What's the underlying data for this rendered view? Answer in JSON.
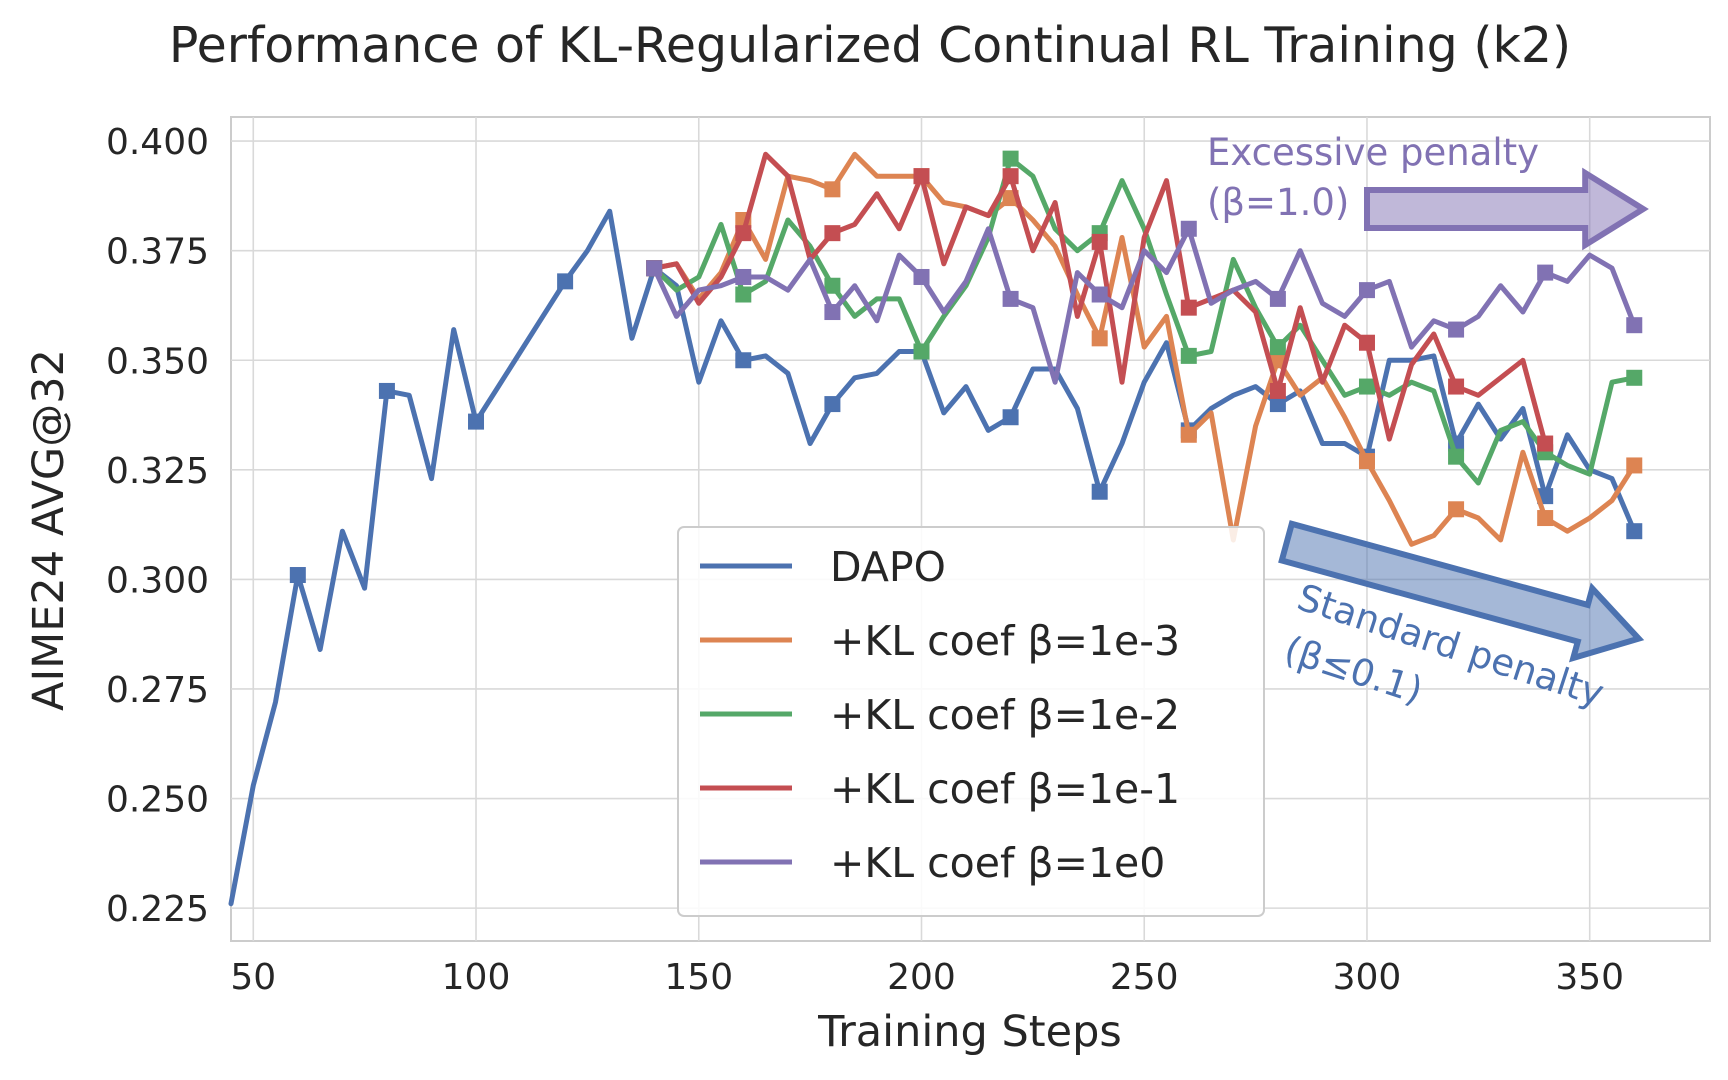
{
  "chart_data": {
    "type": "line",
    "title": "Performance of KL-Regularized Continual RL Training (k2)",
    "xlabel": "Training Steps",
    "ylabel": "AIME24 AVG@32",
    "xlim": [
      45,
      377
    ],
    "ylim": [
      0.2175,
      0.4055
    ],
    "xticks": [
      50,
      100,
      150,
      200,
      250,
      300,
      350
    ],
    "yticks": [
      0.225,
      0.25,
      0.275,
      0.3,
      0.325,
      0.35,
      0.375,
      0.4
    ],
    "grid": true,
    "legend_position": "lower-center",
    "series": [
      {
        "name": "DAPO",
        "color": "#4c72b0",
        "x": [
          45,
          50,
          55,
          60,
          65,
          70,
          75,
          80,
          85,
          90,
          95,
          100,
          105,
          110,
          115,
          120,
          125,
          130,
          135,
          140,
          145,
          150,
          155,
          160,
          165,
          170,
          175,
          180,
          185,
          190,
          195,
          200,
          205,
          210,
          215,
          220,
          225,
          230,
          235,
          240,
          245,
          250,
          255,
          260,
          265,
          270,
          275,
          280,
          285,
          290,
          295,
          300,
          305,
          310,
          315,
          320,
          325,
          330,
          335,
          340,
          345,
          350,
          355,
          360
        ],
        "y": [
          0.226,
          0.253,
          0.272,
          0.301,
          0.284,
          0.311,
          0.298,
          0.343,
          0.342,
          0.323,
          0.357,
          0.336,
          0.344,
          0.352,
          0.36,
          0.368,
          0.375,
          0.384,
          0.355,
          0.371,
          0.367,
          0.345,
          0.359,
          0.35,
          0.351,
          0.347,
          0.331,
          0.34,
          0.346,
          0.347,
          0.352,
          0.352,
          0.338,
          0.344,
          0.334,
          0.337,
          0.348,
          0.348,
          0.339,
          0.32,
          0.331,
          0.345,
          0.354,
          0.334,
          0.339,
          0.342,
          0.344,
          0.34,
          0.343,
          0.331,
          0.331,
          0.328,
          0.35,
          0.35,
          0.351,
          0.331,
          0.34,
          0.332,
          0.339,
          0.319,
          0.333,
          0.325,
          0.323,
          0.311
        ],
        "marker_x": [
          60,
          80,
          100,
          120,
          140,
          160,
          180,
          200,
          220,
          240,
          260,
          280,
          300,
          320,
          340,
          360
        ]
      },
      {
        "name": "+KL coef β=1e-3",
        "color": "#dd8452",
        "x": [
          140,
          145,
          150,
          155,
          160,
          165,
          170,
          175,
          180,
          185,
          190,
          195,
          200,
          205,
          210,
          215,
          220,
          225,
          230,
          235,
          240,
          245,
          250,
          255,
          260,
          265,
          270,
          275,
          280,
          285,
          290,
          295,
          300,
          305,
          310,
          315,
          320,
          325,
          330,
          335,
          340,
          345,
          350,
          355,
          360
        ],
        "y": [
          0.371,
          0.372,
          0.364,
          0.37,
          0.382,
          0.373,
          0.392,
          0.391,
          0.389,
          0.397,
          0.392,
          0.392,
          0.392,
          0.386,
          0.385,
          0.383,
          0.387,
          0.382,
          0.376,
          0.365,
          0.355,
          0.378,
          0.353,
          0.36,
          0.333,
          0.338,
          0.309,
          0.335,
          0.35,
          0.342,
          0.346,
          0.337,
          0.327,
          0.318,
          0.308,
          0.31,
          0.316,
          0.314,
          0.309,
          0.329,
          0.314,
          0.311,
          0.314,
          0.318,
          0.326
        ],
        "marker_x": [
          140,
          160,
          180,
          200,
          220,
          240,
          260,
          280,
          300,
          320,
          340,
          360
        ]
      },
      {
        "name": "+KL coef β=1e-2",
        "color": "#55a868",
        "x": [
          140,
          145,
          150,
          155,
          160,
          165,
          170,
          175,
          180,
          185,
          190,
          195,
          200,
          205,
          210,
          215,
          220,
          225,
          230,
          235,
          240,
          245,
          250,
          255,
          260,
          265,
          270,
          275,
          280,
          285,
          290,
          295,
          300,
          305,
          310,
          315,
          320,
          325,
          330,
          335,
          340,
          345,
          350,
          355,
          360
        ],
        "y": [
          0.371,
          0.366,
          0.369,
          0.381,
          0.365,
          0.368,
          0.382,
          0.376,
          0.367,
          0.36,
          0.364,
          0.364,
          0.352,
          0.36,
          0.367,
          0.378,
          0.396,
          0.392,
          0.38,
          0.375,
          0.379,
          0.391,
          0.38,
          0.365,
          0.351,
          0.352,
          0.373,
          0.362,
          0.353,
          0.358,
          0.35,
          0.342,
          0.344,
          0.342,
          0.345,
          0.343,
          0.328,
          0.322,
          0.334,
          0.336,
          0.329,
          0.326,
          0.324,
          0.345,
          0.346
        ],
        "marker_x": [
          140,
          160,
          180,
          200,
          220,
          240,
          260,
          280,
          300,
          320,
          340,
          360
        ]
      },
      {
        "name": "+KL coef β=1e-1",
        "color": "#c44e52",
        "x": [
          140,
          145,
          150,
          155,
          160,
          165,
          170,
          175,
          180,
          185,
          190,
          195,
          200,
          205,
          210,
          215,
          220,
          225,
          230,
          235,
          240,
          245,
          250,
          255,
          260,
          265,
          270,
          275,
          280,
          285,
          290,
          295,
          300,
          305,
          310,
          315,
          320,
          325,
          330,
          335,
          340
        ],
        "y": [
          0.371,
          0.372,
          0.363,
          0.369,
          0.379,
          0.397,
          0.392,
          0.373,
          0.379,
          0.381,
          0.388,
          0.38,
          0.392,
          0.372,
          0.385,
          0.383,
          0.392,
          0.375,
          0.386,
          0.36,
          0.377,
          0.345,
          0.378,
          0.391,
          0.362,
          0.364,
          0.366,
          0.361,
          0.343,
          0.362,
          0.345,
          0.358,
          0.354,
          0.332,
          0.349,
          0.356,
          0.344,
          0.342,
          0.346,
          0.35,
          0.331
        ],
        "marker_x": [
          140,
          160,
          180,
          200,
          220,
          240,
          260,
          280,
          300,
          320,
          340
        ]
      },
      {
        "name": "+KL coef β=1e0",
        "color": "#8172b3",
        "x": [
          140,
          145,
          150,
          155,
          160,
          165,
          170,
          175,
          180,
          185,
          190,
          195,
          200,
          205,
          210,
          215,
          220,
          225,
          230,
          235,
          240,
          245,
          250,
          255,
          260,
          265,
          270,
          275,
          280,
          285,
          290,
          295,
          300,
          305,
          310,
          315,
          320,
          325,
          330,
          335,
          340,
          345,
          350,
          355,
          360
        ],
        "y": [
          0.371,
          0.36,
          0.366,
          0.367,
          0.369,
          0.369,
          0.366,
          0.373,
          0.361,
          0.367,
          0.359,
          0.374,
          0.369,
          0.361,
          0.368,
          0.38,
          0.364,
          0.362,
          0.345,
          0.37,
          0.365,
          0.362,
          0.375,
          0.37,
          0.38,
          0.363,
          0.366,
          0.368,
          0.364,
          0.375,
          0.363,
          0.36,
          0.366,
          0.368,
          0.353,
          0.359,
          0.357,
          0.36,
          0.367,
          0.361,
          0.37,
          0.368,
          0.374,
          0.371,
          0.358
        ],
        "marker_x": [
          140,
          160,
          180,
          200,
          220,
          240,
          260,
          280,
          300,
          320,
          340,
          360
        ]
      }
    ],
    "annotations": [
      {
        "text_lines": [
          "Excessive penalty",
          "(β=1.0)"
        ],
        "color": "#8172b3",
        "arrow_from": [
          300,
          0.3845
        ],
        "arrow_to": [
          362,
          0.3845
        ]
      },
      {
        "text_lines": [
          "Standard penalty",
          "(β≤0.1)"
        ],
        "color": "#4c72b0",
        "arrow_from": [
          282,
          0.3085
        ],
        "arrow_to": [
          361,
          0.2865
        ]
      }
    ]
  }
}
